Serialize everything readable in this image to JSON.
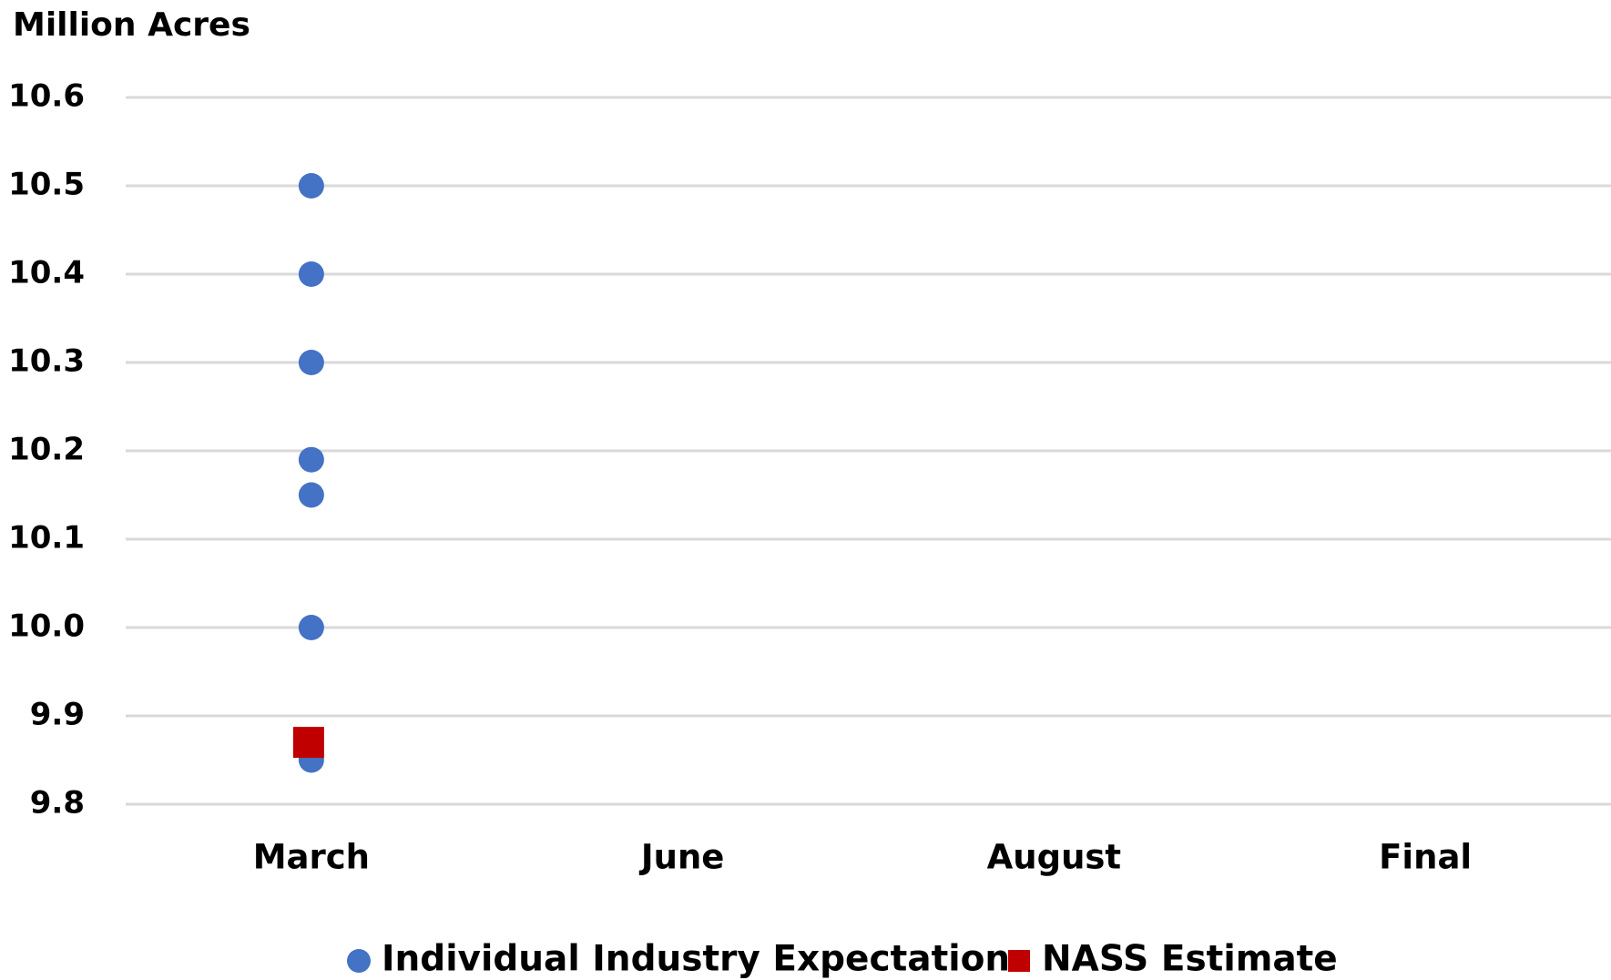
{
  "chart_data": {
    "type": "scatter",
    "y_label": "Million Acres",
    "categories": [
      "March",
      "June",
      "August",
      "Final"
    ],
    "series": [
      {
        "name": "Individual Industry Expectation",
        "color": "#4472c4",
        "marker": "circle",
        "values": [
          [
            10.5,
            10.4,
            10.3,
            10.19,
            10.15,
            10.0,
            9.85
          ],
          [],
          [],
          []
        ]
      },
      {
        "name": "NASS Estimate",
        "color": "#c00000",
        "marker": "square",
        "values": [
          [
            9.87
          ],
          [],
          [],
          []
        ]
      }
    ],
    "ylim": [
      9.8,
      10.6
    ],
    "yticks": [
      9.8,
      9.9,
      {
        "value": 10,
        "label": "10.0"
      },
      10.1,
      10.2,
      10.3,
      10.4,
      10.5,
      10.6
    ],
    "grid": true,
    "legend": "bottom"
  }
}
